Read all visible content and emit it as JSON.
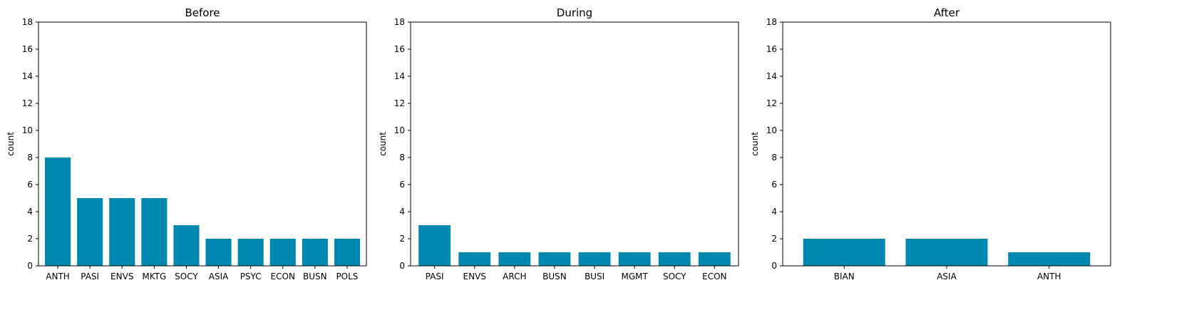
{
  "figure": {
    "bar_color": "#0088b0",
    "axis_color": "#000000",
    "background": "#ffffff"
  },
  "chart_data": [
    {
      "type": "bar",
      "title": "Before",
      "xlabel": "",
      "ylabel": "count",
      "ylim": [
        0,
        18
      ],
      "yticks": [
        0,
        2,
        4,
        6,
        8,
        10,
        12,
        14,
        16,
        18
      ],
      "grid": false,
      "categories": [
        "ANTH",
        "PASI",
        "ENVS",
        "MKTG",
        "SOCY",
        "ASIA",
        "PSYC",
        "ECON",
        "BUSN",
        "POLS"
      ],
      "values": [
        8,
        5,
        5,
        5,
        3,
        2,
        2,
        2,
        2,
        2
      ]
    },
    {
      "type": "bar",
      "title": "During",
      "xlabel": "",
      "ylabel": "count",
      "ylim": [
        0,
        18
      ],
      "yticks": [
        0,
        2,
        4,
        6,
        8,
        10,
        12,
        14,
        16,
        18
      ],
      "grid": false,
      "categories": [
        "PASI",
        "ENVS",
        "ARCH",
        "BUSN",
        "BUSI",
        "MGMT",
        "SOCY",
        "ECON"
      ],
      "values": [
        3,
        1,
        1,
        1,
        1,
        1,
        1,
        1
      ]
    },
    {
      "type": "bar",
      "title": "After",
      "xlabel": "",
      "ylabel": "count",
      "ylim": [
        0,
        18
      ],
      "yticks": [
        0,
        2,
        4,
        6,
        8,
        10,
        12,
        14,
        16,
        18
      ],
      "grid": false,
      "categories": [
        "BIAN",
        "ASIA",
        "ANTH"
      ],
      "values": [
        2,
        2,
        1
      ]
    }
  ]
}
